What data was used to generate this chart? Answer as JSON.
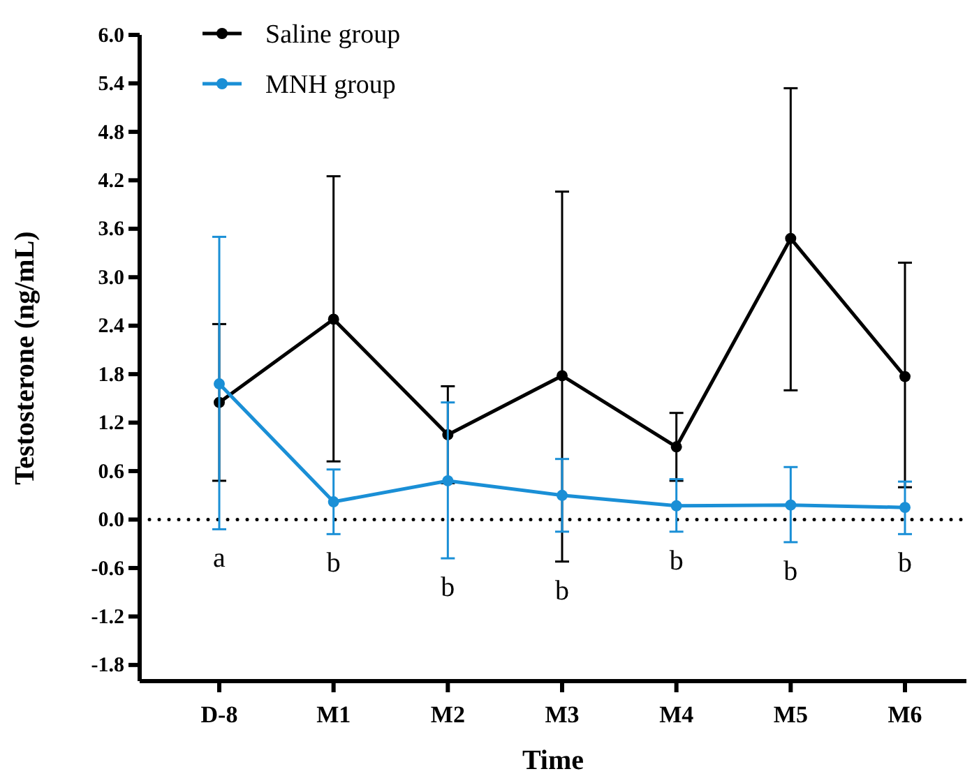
{
  "chart_data": {
    "type": "line",
    "xlabel": "Time",
    "ylabel": "Testosterone (ng/mL)",
    "categories": [
      "D-8",
      "M1",
      "M2",
      "M3",
      "M4",
      "M5",
      "M6"
    ],
    "series": [
      {
        "name": "Saline group",
        "color": "#000000",
        "values": [
          1.45,
          2.48,
          1.05,
          1.78,
          0.9,
          3.48,
          1.77
        ],
        "errors": [
          [
            0.48,
            2.42
          ],
          [
            0.72,
            4.25
          ],
          [
            0.45,
            1.65
          ],
          [
            -0.52,
            4.06
          ],
          [
            0.48,
            1.32
          ],
          [
            1.6,
            5.34
          ],
          [
            0.4,
            3.18
          ]
        ]
      },
      {
        "name": "MNH group",
        "color": "#1a8fd6",
        "values": [
          1.68,
          0.22,
          0.48,
          0.3,
          0.17,
          0.18,
          0.15
        ],
        "errors": [
          [
            -0.12,
            3.5
          ],
          [
            -0.18,
            0.62
          ],
          [
            -0.48,
            1.45
          ],
          [
            -0.15,
            0.75
          ],
          [
            -0.15,
            0.5
          ],
          [
            -0.28,
            0.65
          ],
          [
            -0.18,
            0.47
          ]
        ]
      }
    ],
    "ylim": [
      -2.0,
      6.0
    ],
    "yticks": [
      {
        "value": -1.8,
        "label": "-1.8"
      },
      {
        "value": -1.2,
        "label": "-1.2"
      },
      {
        "value": -0.6,
        "label": "-0.6"
      },
      {
        "value": 0,
        "label": "0.0"
      },
      {
        "value": 0.6,
        "label": "0.6"
      },
      {
        "value": 1.2,
        "label": "1.2"
      },
      {
        "value": 1.8,
        "label": "1.8"
      },
      {
        "value": 2.4,
        "label": "2.4"
      },
      {
        "value": 3.0,
        "label": "3.0"
      },
      {
        "value": 3.6,
        "label": "3.6"
      },
      {
        "value": 4.2,
        "label": "4.2"
      },
      {
        "value": 4.8,
        "label": "4.8"
      },
      {
        "value": 5.4,
        "label": "5.4"
      },
      {
        "value": 6.0,
        "label": "6.0"
      }
    ],
    "ref_lines": [
      {
        "axis": "y",
        "value": 0,
        "line_style": "dotted",
        "color": "#000000"
      }
    ],
    "annotations": [
      "a",
      "b",
      "b",
      "b",
      "b",
      "b",
      "b"
    ],
    "legend": "top left",
    "marker": "circle",
    "line_style": "solid",
    "grid": false
  }
}
